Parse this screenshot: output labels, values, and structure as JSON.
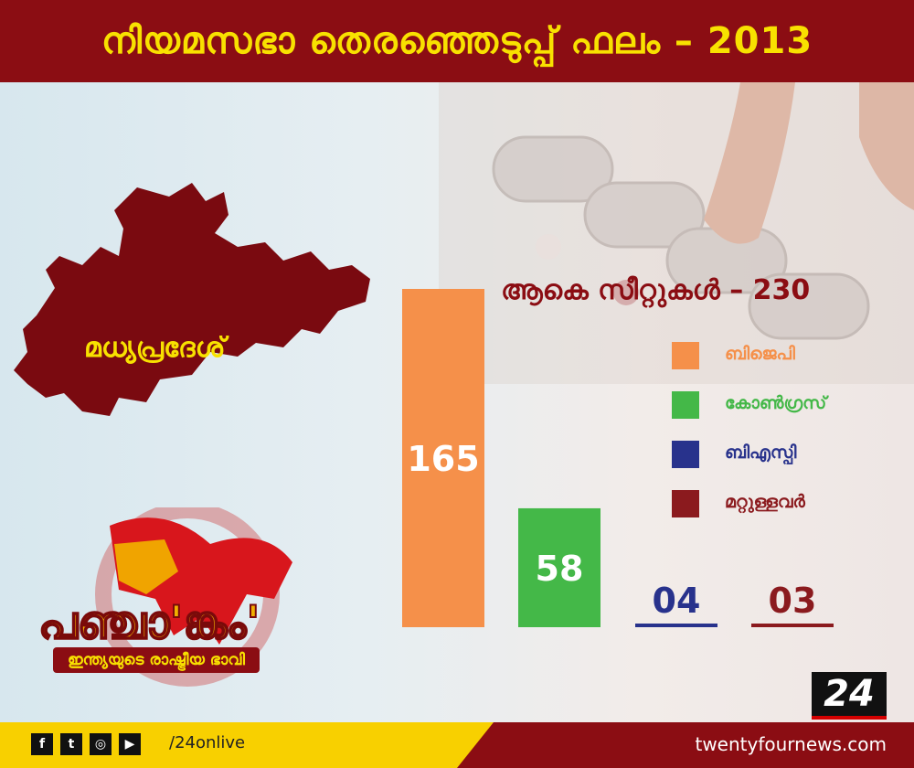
{
  "header": {
    "title": "നിയമസഭാ തെരഞ്ഞെടുപ്പ് ഫലം – 2013"
  },
  "state": {
    "name": "മധ്യപ്രദേശ്"
  },
  "total_seats_label": "ആകെ സീറ്റുകൾ – 230",
  "chart_data": {
    "type": "bar",
    "categories": [
      "ബിജെപി",
      "കോൺഗ്രസ്",
      "ബിഎസ്പി",
      "മറ്റുള്ളവർ"
    ],
    "values": [
      165,
      58,
      4,
      3
    ],
    "value_labels": [
      "165",
      "58",
      "04",
      "03"
    ],
    "colors": [
      "#f5904a",
      "#44b848",
      "#28328c",
      "#8b1a1e"
    ],
    "total": 230,
    "legend_position": "right"
  },
  "logo": {
    "word": "പഞ്ചാ'ങ്കം'",
    "tagline": "ഇന്ത്യയുടെ രാഷ്ട്രീയ ഭാവി"
  },
  "channel_badge": "24",
  "footer": {
    "social_icons": [
      {
        "name": "facebook-icon",
        "glyph": "f"
      },
      {
        "name": "twitter-icon",
        "glyph": "t"
      },
      {
        "name": "instagram-icon",
        "glyph": "◎"
      },
      {
        "name": "youtube-icon",
        "glyph": "▶"
      }
    ],
    "handle": "/24onlive",
    "website": "twentyfournews.com"
  }
}
